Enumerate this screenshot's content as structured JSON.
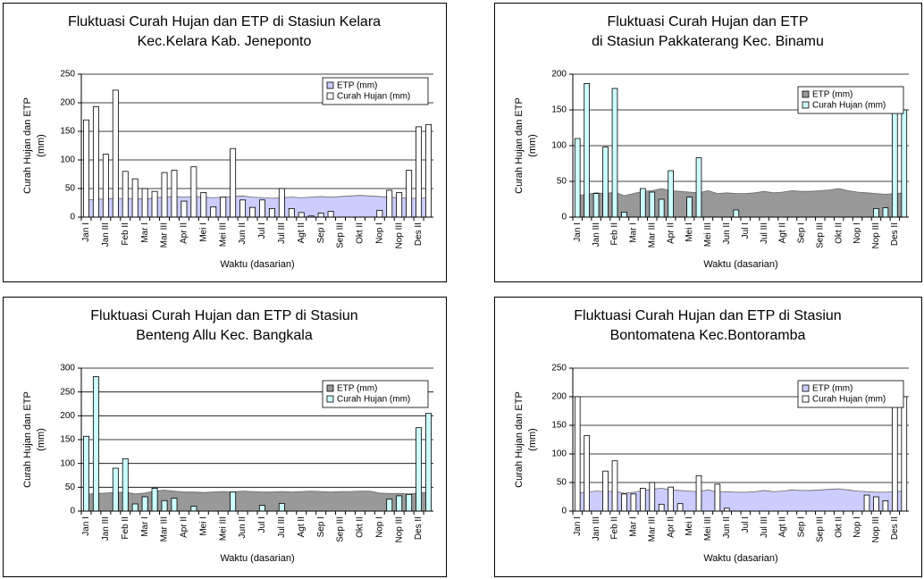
{
  "chart_data": [
    {
      "type": "bar",
      "title": [
        "Fluktuasi Curah Hujan dan ETP di Stasiun Kelara",
        "Kec.Kelara Kab. Jeneponto"
      ],
      "ylabel": [
        "Curah Hujan dan ETP",
        "(mm)"
      ],
      "xlabel": "Waktu (dasarian)",
      "categories": [
        "Jan I",
        null,
        "Jan III",
        null,
        "Feb II",
        null,
        "Mar I",
        null,
        "Mar III",
        null,
        "Apr II",
        null,
        "Mei I",
        null,
        "Mei III",
        null,
        "Jun II",
        null,
        "Jul I",
        null,
        "Jul III",
        null,
        "Agt II",
        null,
        "Sep I",
        null,
        "Sep III",
        null,
        "Okt II",
        null,
        "Nop I",
        null,
        "Nop III",
        null,
        "Des II",
        null
      ],
      "ylim": [
        0,
        250
      ],
      "yticks": [
        0,
        50,
        100,
        150,
        200,
        250
      ],
      "grid": true,
      "legend": "top-right",
      "series": [
        {
          "name": "ETP (mm)",
          "type": "area",
          "color": "#ccccff",
          "values": [
            30,
            31,
            32,
            33,
            32,
            33,
            31,
            34,
            35,
            36,
            35,
            36,
            35,
            34,
            35,
            36,
            37,
            35,
            34,
            33,
            34,
            35,
            34,
            35,
            36,
            35,
            36,
            37,
            38,
            37,
            36,
            35,
            34,
            33,
            33,
            34
          ]
        },
        {
          "name": "Curah Hujan (mm)",
          "type": "bar",
          "color": "#ffffff",
          "values": [
            170,
            193,
            110,
            222,
            80,
            67,
            50,
            45,
            78,
            82,
            28,
            88,
            43,
            18,
            35,
            120,
            30,
            17,
            30,
            15,
            50,
            15,
            8,
            2,
            7,
            10,
            0,
            0,
            0,
            0,
            12,
            47,
            43,
            82,
            158,
            162
          ]
        }
      ]
    },
    {
      "type": "bar",
      "title": [
        "Fluktuasi Curah Hujan dan ETP",
        "di Stasiun Pakkaterang Kec. Binamu"
      ],
      "ylabel": [
        "Curah Hujan dan ETP",
        "(mm)"
      ],
      "xlabel": "Waktu (dasarian)",
      "categories": [
        "Jan I",
        null,
        "Jan III",
        null,
        "Feb II",
        null,
        "Mar I",
        null,
        "Mar III",
        null,
        "Apr II",
        null,
        "Mei I",
        null,
        "Mei III",
        null,
        "Jun II",
        null,
        "Jul I",
        null,
        "Jul III",
        null,
        "Agt II",
        null,
        "Sep I",
        null,
        "Sep III",
        null,
        "Okt II",
        null,
        "Nop I",
        null,
        "Nop III",
        null,
        "Des II",
        null
      ],
      "ylim": [
        0,
        200
      ],
      "yticks": [
        0,
        50,
        100,
        150,
        200
      ],
      "grid": true,
      "legend": "top-right",
      "series": [
        {
          "name": "ETP (mm)",
          "type": "area",
          "color": "#999999",
          "values": [
            30,
            32,
            34,
            33,
            35,
            30,
            33,
            36,
            37,
            40,
            37,
            36,
            35,
            34,
            37,
            33,
            34,
            33,
            33,
            34,
            36,
            34,
            35,
            37,
            36,
            36,
            37,
            38,
            40,
            37,
            35,
            34,
            33,
            32,
            33,
            34
          ]
        },
        {
          "name": "Curah Hujan (mm)",
          "type": "bar",
          "color": "#ccffff",
          "values": [
            110,
            187,
            33,
            98,
            180,
            7,
            0,
            40,
            35,
            25,
            65,
            0,
            28,
            83,
            0,
            0,
            0,
            10,
            0,
            0,
            0,
            0,
            0,
            0,
            0,
            0,
            0,
            0,
            0,
            0,
            0,
            0,
            12,
            13,
            165,
            150
          ]
        }
      ]
    },
    {
      "type": "bar",
      "title": [
        "Fluktuasi Curah Hujan dan ETP di Stasiun",
        "Benteng Allu Kec. Bangkala"
      ],
      "ylabel": [
        "Curah Hujan dan ETP",
        "(mm)"
      ],
      "xlabel": "Waktu (dasarian)",
      "categories": [
        "Jan I",
        null,
        "Jan III",
        null,
        "Feb II",
        null,
        "Mar I",
        null,
        "Mar III",
        null,
        "Apr II",
        null,
        "Mei I",
        null,
        "Mei III",
        null,
        "Jun II",
        null,
        "Jul I",
        null,
        "Jul III",
        null,
        "Agt II",
        null,
        "Sep I",
        null,
        "Sep III",
        null,
        "Okt II",
        null,
        "Nop I",
        null,
        "Nop III",
        null,
        "Des II",
        null
      ],
      "ylim": [
        0,
        300
      ],
      "yticks": [
        0,
        50,
        100,
        150,
        200,
        250,
        300
      ],
      "grid": true,
      "legend": "top-right",
      "series": [
        {
          "name": "ETP (mm)",
          "type": "area",
          "color": "#999999",
          "values": [
            35,
            37,
            38,
            39,
            40,
            36,
            38,
            42,
            44,
            42,
            40,
            40,
            39,
            40,
            41,
            40,
            42,
            41,
            40,
            40,
            41,
            40,
            41,
            42,
            41,
            40,
            41,
            41,
            42,
            42,
            38,
            37,
            37,
            36,
            38,
            40
          ]
        },
        {
          "name": "Curah Hujan (mm)",
          "type": "bar",
          "color": "#ccffff",
          "values": [
            157,
            282,
            0,
            90,
            110,
            15,
            30,
            48,
            22,
            27,
            0,
            10,
            0,
            0,
            0,
            40,
            0,
            0,
            12,
            0,
            16,
            0,
            0,
            0,
            0,
            0,
            0,
            0,
            0,
            0,
            0,
            25,
            32,
            35,
            175,
            205
          ]
        }
      ]
    },
    {
      "type": "bar",
      "title": [
        "Fluktuasi Curah Hujan dan ETP di Stasiun",
        "Bontomatena Kec.Bontoramba"
      ],
      "ylabel": [
        "Curah Hujan dan ETP",
        "(mm)"
      ],
      "xlabel": "Waktu (dasarian)",
      "categories": [
        "Jan I",
        null,
        "Jan III",
        null,
        "Feb II",
        null,
        "Mar I",
        null,
        "Mar III",
        null,
        "Apr II",
        null,
        "Mei I",
        null,
        "Mei III",
        null,
        "Jun II",
        null,
        "Jul I",
        null,
        "Jul III",
        null,
        "Agt II",
        null,
        "Sep I",
        null,
        "Sep III",
        null,
        "Okt II",
        null,
        "Nop I",
        null,
        "Nop III",
        null,
        "Des II",
        null
      ],
      "ylim": [
        0,
        250
      ],
      "yticks": [
        0,
        50,
        100,
        150,
        200,
        250
      ],
      "grid": true,
      "legend": "top-right",
      "series": [
        {
          "name": "ETP (mm)",
          "type": "area",
          "color": "#ccccff",
          "values": [
            32,
            33,
            35,
            34,
            35,
            31,
            33,
            36,
            38,
            40,
            37,
            36,
            35,
            34,
            37,
            33,
            34,
            33,
            33,
            34,
            36,
            34,
            35,
            37,
            36,
            36,
            37,
            38,
            39,
            37,
            35,
            34,
            33,
            33,
            34,
            35
          ]
        },
        {
          "name": "Curah Hujan (mm)",
          "type": "bar",
          "color": "#ffffff",
          "values": [
            200,
            132,
            0,
            70,
            88,
            30,
            30,
            40,
            50,
            12,
            42,
            13,
            0,
            62,
            0,
            47,
            5,
            0,
            0,
            0,
            0,
            0,
            0,
            0,
            0,
            0,
            0,
            0,
            0,
            0,
            0,
            28,
            25,
            18,
            182,
            200
          ]
        }
      ]
    }
  ]
}
